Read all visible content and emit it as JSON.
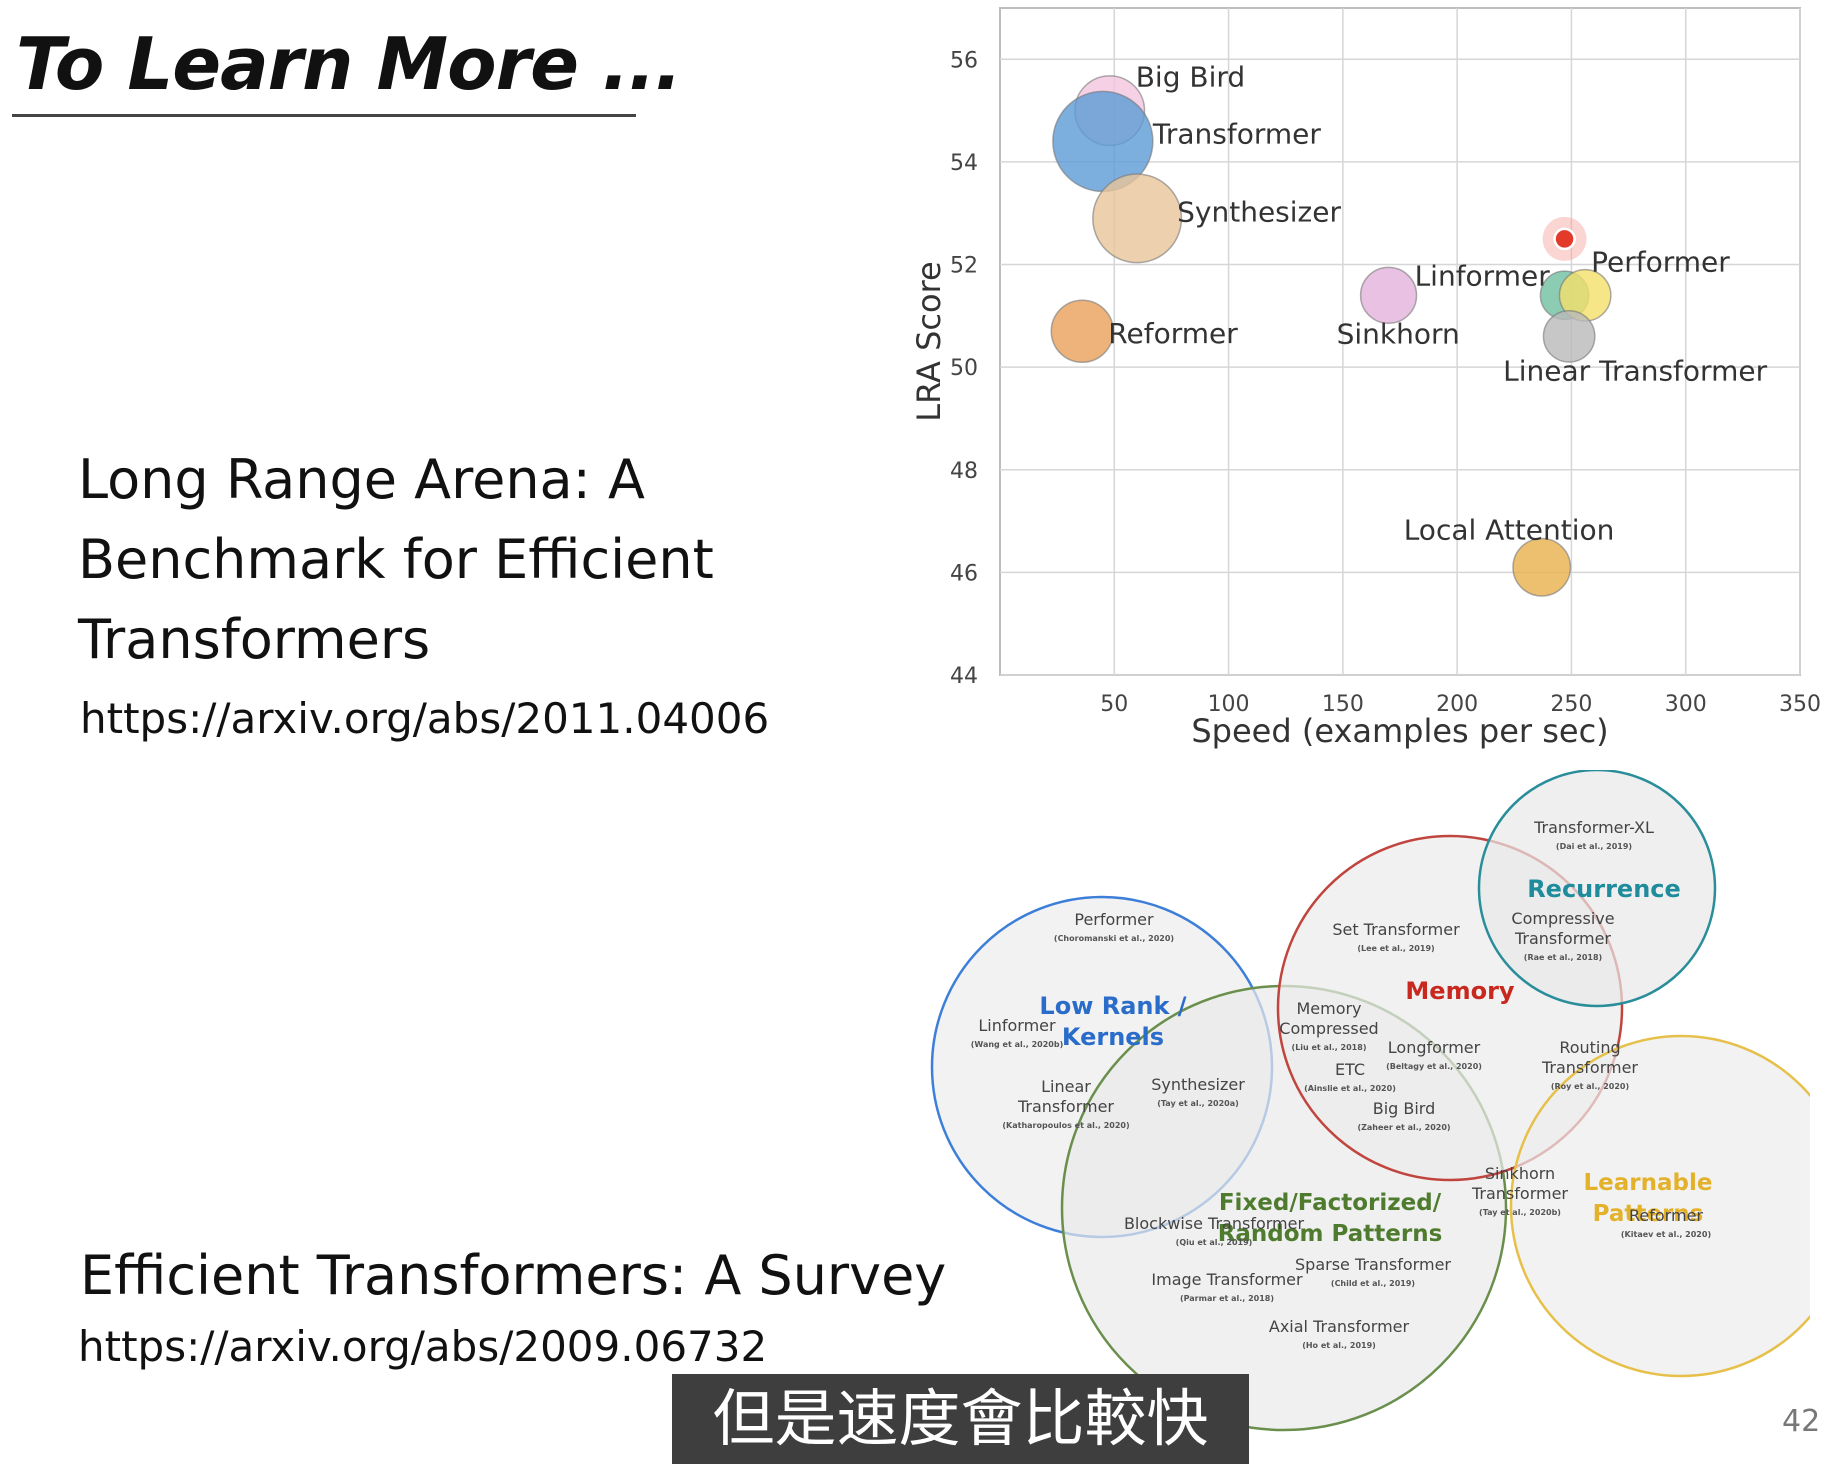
{
  "slide": {
    "title": "To Learn More ...",
    "paper1": {
      "title_lines": [
        "Long Range Arena: A",
        "Benchmark for Efficient",
        "Transformers"
      ],
      "url": "https://arxiv.org/abs/2011.04006"
    },
    "paper2": {
      "title": "Efficient Transformers: A Survey",
      "url": "https://arxiv.org/abs/2009.06732"
    },
    "subtitle": "但是速度會比較快",
    "page_number": "42"
  },
  "chart_data": {
    "type": "scatter",
    "title": "",
    "xlabel": "Speed (examples per sec)",
    "ylabel": "LRA Score",
    "xlim": [
      0,
      350
    ],
    "ylim": [
      44,
      57
    ],
    "xticks": [
      50,
      100,
      150,
      200,
      250,
      300,
      350
    ],
    "yticks": [
      44,
      46,
      48,
      50,
      52,
      54,
      56
    ],
    "grid": true,
    "points": [
      {
        "label": "Big Bird",
        "x": 48,
        "y": 55.0,
        "size": 0.6,
        "color": "#f4c6e0"
      },
      {
        "label": "Transformer",
        "x": 45,
        "y": 54.4,
        "size": 1.0,
        "color": "#5b9bd5"
      },
      {
        "label": "Synthesizer",
        "x": 60,
        "y": 52.9,
        "size": 0.85,
        "color": "#e8c49a"
      },
      {
        "label": "Reformer",
        "x": 36,
        "y": 50.7,
        "size": 0.5,
        "color": "#e9a05a"
      },
      {
        "label": "Sinkhorn",
        "x": 170,
        "y": 51.4,
        "size": 0.42,
        "color": "#e2b2dc"
      },
      {
        "label": "Linformer",
        "x": 247,
        "y": 51.4,
        "size": 0.32,
        "color": "#6fbf9f"
      },
      {
        "label": "Performer",
        "x": 256,
        "y": 51.4,
        "size": 0.36,
        "color": "#f4e06a"
      },
      {
        "label": "Linear Transformer",
        "x": 249,
        "y": 50.6,
        "size": 0.36,
        "color": "#b9b9b9"
      },
      {
        "label": "Local Attention",
        "x": 237,
        "y": 46.1,
        "size": 0.44,
        "color": "#e8b04c"
      },
      {
        "label": "",
        "x": 247,
        "y": 52.5,
        "size": 0.28,
        "color": "#e33a2a",
        "highlight": true
      }
    ]
  },
  "venn": {
    "categories": [
      {
        "name": "low_rank",
        "label_lines": [
          "Low Rank /",
          "Kernels"
        ],
        "color": "#2a6cc9"
      },
      {
        "name": "memory",
        "label_lines": [
          "Memory"
        ],
        "color": "#c8281e"
      },
      {
        "name": "recurrence",
        "label_lines": [
          "Recurrence"
        ],
        "color": "#1e8c9c"
      },
      {
        "name": "fixed",
        "label_lines": [
          "Fixed/Factorized/",
          "Random Patterns"
        ],
        "color": "#4f7b2f"
      },
      {
        "name": "learnable",
        "label_lines": [
          "Learnable",
          "Patterns"
        ],
        "color": "#e3b22a"
      }
    ],
    "models": [
      {
        "name": "Transformer-XL",
        "cite": "(Dai et al., 2019)"
      },
      {
        "name": "Compressive Transformer",
        "cite": "(Rae et al., 2018)"
      },
      {
        "name": "Performer",
        "cite": "(Choromanski et al., 2020)"
      },
      {
        "name": "Set Transformer",
        "cite": "(Lee et al., 2019)"
      },
      {
        "name": "Linformer",
        "cite": "(Wang et al., 2020b)"
      },
      {
        "name": "Memory Compressed",
        "cite": "(Liu et al., 2018)"
      },
      {
        "name": "Longformer",
        "cite": "(Beltagy et al., 2020)"
      },
      {
        "name": "ETC",
        "cite": "(Ainslie et al., 2020)"
      },
      {
        "name": "Big Bird",
        "cite": "(Zaheer et al., 2020)"
      },
      {
        "name": "Routing Transformer",
        "cite": "(Roy et al., 2020)"
      },
      {
        "name": "Linear Transformer",
        "cite": "(Katharopoulos et al., 2020)"
      },
      {
        "name": "Synthesizer",
        "cite": "(Tay et al., 2020a)"
      },
      {
        "name": "Sinkhorn Transformer",
        "cite": "(Tay et al., 2020b)"
      },
      {
        "name": "Reformer",
        "cite": "(Kitaev et al., 2020)"
      },
      {
        "name": "Blockwise Transformer",
        "cite": "(Qiu et al., 2019)"
      },
      {
        "name": "Sparse Transformer",
        "cite": "(Child et al., 2019)"
      },
      {
        "name": "Image Transformer",
        "cite": "(Parmar et al., 2018)"
      },
      {
        "name": "Axial Transformer",
        "cite": "(Ho et al., 2019)"
      }
    ]
  }
}
